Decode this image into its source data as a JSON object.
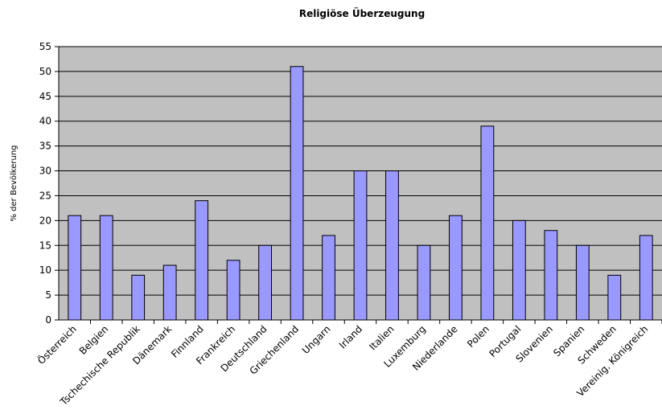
{
  "chart_data": {
    "type": "bar",
    "title": "Religiöse Überzeugung",
    "xlabel": "",
    "ylabel": "% der Bevölkerung",
    "ylim": [
      0,
      55
    ],
    "yticks": [
      0,
      5,
      10,
      15,
      20,
      25,
      30,
      35,
      40,
      45,
      50,
      55
    ],
    "grid": true,
    "legend": "none",
    "plot_background": "#C0C0C0",
    "bar_color": "#9999FF",
    "categories": [
      "Österreich",
      "Belgien",
      "Tschechische Republik",
      "Dänemark",
      "Finnland",
      "Frankreich",
      "Deutschland",
      "Griechenland",
      "Ungarn",
      "Irland",
      "Italien",
      "Luxemburg",
      "Niederlande",
      "Polen",
      "Portugal",
      "Slovenien",
      "Spanien",
      "Schweden",
      "Vereinig. Königreich"
    ],
    "values": [
      21,
      21,
      9,
      11,
      24,
      12,
      15,
      51,
      17,
      30,
      30,
      15,
      21,
      39,
      20,
      18,
      15,
      9,
      17
    ]
  }
}
